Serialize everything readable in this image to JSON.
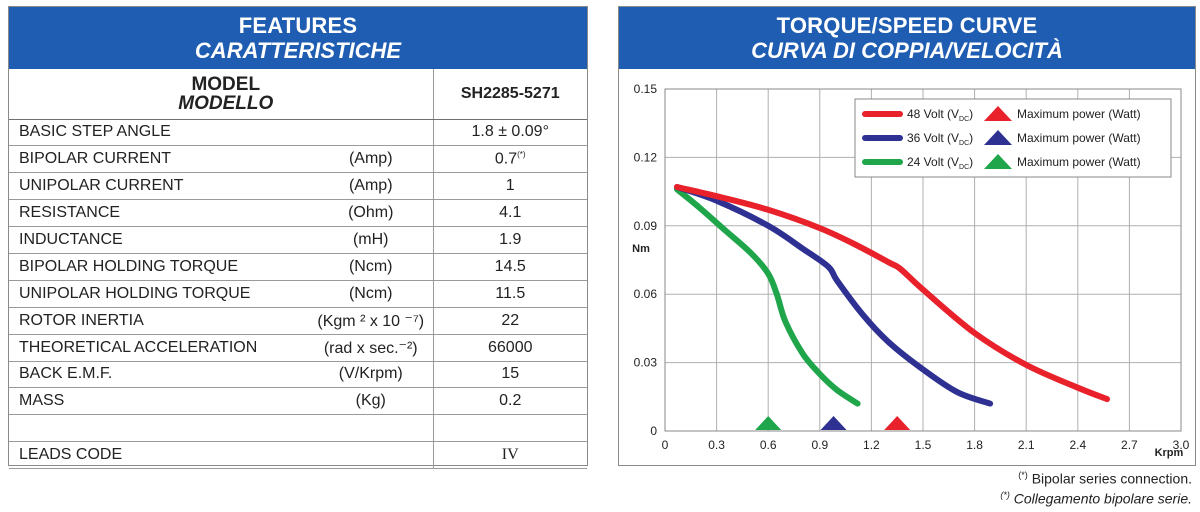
{
  "features": {
    "title": "FEATURES",
    "subtitle": "CARATTERISTICHE",
    "model_label": "MODEL",
    "model_label_it": "MODELLO",
    "model_value": "SH2285-5271",
    "rows": [
      {
        "label": "BASIC STEP ANGLE",
        "unit": "",
        "value": "1.8 ± 0.09°"
      },
      {
        "label": "BIPOLAR CURRENT",
        "unit": "(Amp)",
        "value": "0.7",
        "note": "(*)"
      },
      {
        "label": "UNIPOLAR CURRENT",
        "unit": "(Amp)",
        "value": "1"
      },
      {
        "label": "RESISTANCE",
        "unit": "(Ohm)",
        "value": "4.1"
      },
      {
        "label": "INDUCTANCE",
        "unit": "(mH)",
        "value": "1.9"
      },
      {
        "label": "BIPOLAR HOLDING TORQUE",
        "unit": "(Ncm)",
        "value": "14.5"
      },
      {
        "label": "UNIPOLAR HOLDING TORQUE",
        "unit": "(Ncm)",
        "value": "11.5"
      },
      {
        "label": "ROTOR INERTIA",
        "unit": "(Kgm ² x 10 ⁻⁷)",
        "value": "22"
      },
      {
        "label": "THEORETICAL ACCELERATION",
        "unit": "(rad x sec.⁻²)",
        "value": "66000"
      },
      {
        "label": "BACK E.M.F.",
        "unit": "(V/Krpm)",
        "value": "15"
      },
      {
        "label": "MASS",
        "unit": "(Kg)",
        "value": "0.2"
      },
      {
        "label": "",
        "unit": "",
        "value": ""
      },
      {
        "label": "LEADS CODE",
        "unit": "",
        "value": "IV"
      }
    ]
  },
  "curve": {
    "title": "TORQUE/SPEED CURVE",
    "subtitle": "CURVA DI COPPIA/VELOCITÀ"
  },
  "chart_data": {
    "type": "line",
    "xlabel": "Krpm",
    "ylabel": "Nm",
    "xlim": [
      0,
      3.0
    ],
    "ylim": [
      0,
      0.15
    ],
    "x_ticks": [
      "0",
      "0.3",
      "0.6",
      "0.9",
      "1.2",
      "1.5",
      "1.8",
      "2.1",
      "2.4",
      "2.7",
      "3.0"
    ],
    "y_ticks": [
      "0",
      "0.03",
      "0.06",
      "0.09",
      "0.12",
      "0.15"
    ],
    "grid": true,
    "legend_position": "top-right",
    "series": [
      {
        "name": "48 Volt",
        "sub": "DC",
        "marker_label": "Maximum power (Watt)",
        "color": "#e8212a",
        "x": [
          0.07,
          0.3,
          0.6,
          0.9,
          1.1,
          1.3,
          1.37,
          1.5,
          1.8,
          2.1,
          2.4,
          2.57
        ],
        "y": [
          0.107,
          0.103,
          0.097,
          0.089,
          0.082,
          0.074,
          0.071,
          0.062,
          0.043,
          0.029,
          0.019,
          0.014
        ],
        "max_power_x": 1.35
      },
      {
        "name": "36 Volt",
        "sub": "DC",
        "marker_label": "Maximum power (Watt)",
        "color": "#2e3192",
        "x": [
          0.07,
          0.3,
          0.6,
          0.8,
          0.95,
          1.0,
          1.15,
          1.3,
          1.5,
          1.7,
          1.89
        ],
        "y": [
          0.107,
          0.101,
          0.09,
          0.08,
          0.072,
          0.066,
          0.051,
          0.039,
          0.027,
          0.017,
          0.012
        ],
        "max_power_x": 0.98
      },
      {
        "name": "24 Volt",
        "sub": "DC",
        "marker_label": "Maximum power (Watt)",
        "color": "#1fa54a",
        "x": [
          0.07,
          0.2,
          0.35,
          0.5,
          0.6,
          0.65,
          0.7,
          0.8,
          0.9,
          1.0,
          1.12
        ],
        "y": [
          0.106,
          0.098,
          0.088,
          0.078,
          0.069,
          0.06,
          0.048,
          0.034,
          0.025,
          0.018,
          0.012
        ],
        "max_power_x": 0.6
      }
    ]
  },
  "footnotes": {
    "mark": "*",
    "en": "Bipolar series connection.",
    "it": "Collegamento bipolare serie."
  }
}
